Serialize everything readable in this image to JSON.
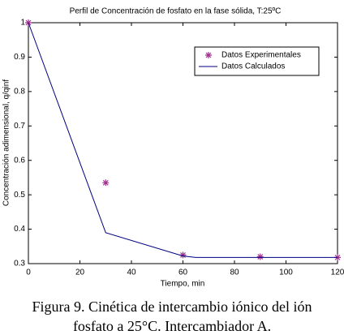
{
  "chart_data": {
    "type": "line",
    "title": "Perfil de Concentración de fosfato en la fase sólida, T:25ºC",
    "xlabel": "Tiempo, min",
    "ylabel": "Concentración adimensional,  q/qinf",
    "series": [
      {
        "name": "Datos Experimentales",
        "color": "#a0308f",
        "style": "marker",
        "x": [
          0,
          30,
          60,
          90,
          120
        ],
        "values": [
          1,
          0.535,
          0.325,
          0.32,
          0.318
        ]
      },
      {
        "name": "Datos Calculados",
        "color": "#000080",
        "style": "line",
        "x": [
          0,
          30,
          60,
          65,
          120
        ],
        "values": [
          1,
          0.39,
          0.322,
          0.318,
          0.318
        ]
      }
    ],
    "xlim": [
      0,
      120
    ],
    "xticks": [
      0,
      20,
      40,
      60,
      80,
      100,
      120
    ],
    "ylim": [
      0.3,
      1
    ],
    "yticks": [
      0.3,
      0.4,
      0.5,
      0.6,
      0.7,
      0.8,
      0.9,
      1
    ],
    "legend": "upper right"
  },
  "caption": [
    "Figura 9. Cinética de intercambio iónico del ión",
    "fosfato a 25°C. Intercambiador A."
  ]
}
